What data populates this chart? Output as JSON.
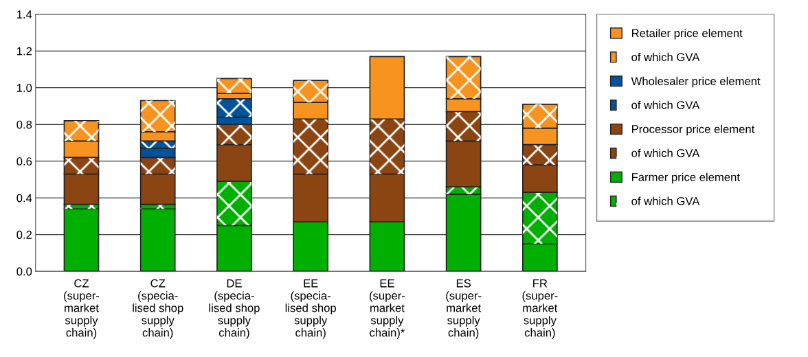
{
  "chart_data": {
    "type": "bar",
    "stacked": true,
    "categories": [
      "CZ\n(super-\nmarket\nsupply\nchain)",
      "CZ\n(specia-\nlised shop\nsupply\nchain)",
      "DE\n(specia-\nlised shop\nsupply\nchain)",
      "EE\n(specia-\nlised shop\nsupply\nchain)",
      "EE\n(super-\nmarket\nsupply\nchain)*",
      "ES\n(super-\nmarket\nsupply\nchain)",
      "FR\n(super-\nmarket\nsupply\nchain)"
    ],
    "series": [
      {
        "name": "Farmer price element",
        "color": "#00b000",
        "values": [
          0.34,
          0.34,
          0.25,
          0.27,
          0.27,
          0.42,
          0.15
        ]
      },
      {
        "name": "of which GVA",
        "color": "#00b000",
        "marker": "cross",
        "values": [
          0.025,
          0.025,
          0.24,
          null,
          null,
          0.04,
          0.28
        ]
      },
      {
        "name": "Processor price element",
        "color": "#8b4513",
        "values": [
          0.165,
          0.165,
          0.2,
          0.26,
          0.26,
          0.25,
          0.15
        ]
      },
      {
        "name": "of which GVA",
        "color": "#8b4513",
        "marker": "cross",
        "values": [
          0.09,
          0.09,
          0.11,
          0.3,
          0.3,
          0.16,
          0.11
        ]
      },
      {
        "name": "Wholesaler price element",
        "color": "#00539b",
        "values": [
          null,
          0.05,
          0.04,
          null,
          null,
          null,
          null
        ]
      },
      {
        "name": "of which GVA",
        "color": "#00539b",
        "marker": "cross",
        "values": [
          null,
          0.04,
          0.1,
          null,
          null,
          null,
          null
        ]
      },
      {
        "name": "Retailer price element",
        "color": "#f7931e",
        "values": [
          0.09,
          0.05,
          0.03,
          0.09,
          0.34,
          0.07,
          0.09
        ]
      },
      {
        "name": "of which GVA",
        "color": "#f7931e",
        "marker": "cross",
        "values": [
          0.11,
          0.17,
          0.08,
          0.12,
          null,
          0.23,
          0.13
        ]
      }
    ],
    "ylim": [
      0,
      1.4
    ],
    "yticks": [
      {
        "value": 0,
        "label": "0.0"
      },
      {
        "value": 0.2,
        "label": "0.2"
      },
      {
        "value": 0.4,
        "label": "0.4"
      },
      {
        "value": 0.6,
        "label": "0.6"
      },
      {
        "value": 0.8,
        "label": "0.8"
      },
      {
        "value": 1.0,
        "label": "1.0"
      },
      {
        "value": 1.2,
        "label": "1.2"
      },
      {
        "value": 1.4,
        "label": "1.4"
      }
    ],
    "grid": "y",
    "legend": "right"
  }
}
